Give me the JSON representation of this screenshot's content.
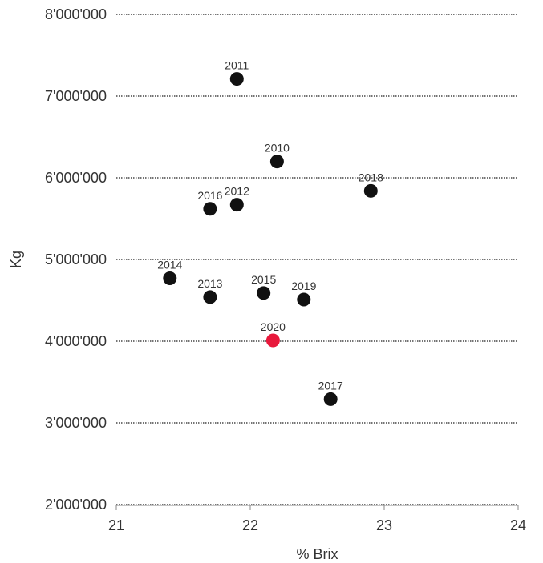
{
  "chart_data": {
    "type": "scatter",
    "xlabel": "% Brix",
    "ylabel": "Kg",
    "xlim": [
      21,
      24
    ],
    "ylim": [
      2000000,
      8000000
    ],
    "x_ticks": [
      21,
      22,
      23,
      24
    ],
    "x_tick_labels": [
      "21",
      "22",
      "23",
      "24"
    ],
    "y_ticks": [
      2000000,
      3000000,
      4000000,
      5000000,
      6000000,
      7000000,
      8000000
    ],
    "y_tick_labels": [
      "2'000'000",
      "3'000'000",
      "4'000'000",
      "5'000'000",
      "6'000'000",
      "7'000'000",
      "8'000'000"
    ],
    "grid": "horizontal dotted",
    "colors": {
      "point": "#111111",
      "highlight": "#e8193c",
      "grid": "#222222",
      "axis": "#888888"
    },
    "points": [
      {
        "label": "2010",
        "x": 22.2,
        "y": 6200000,
        "highlight": false
      },
      {
        "label": "2011",
        "x": 21.9,
        "y": 7210000,
        "highlight": false
      },
      {
        "label": "2012",
        "x": 21.9,
        "y": 5670000,
        "highlight": false
      },
      {
        "label": "2013",
        "x": 21.7,
        "y": 4540000,
        "highlight": false
      },
      {
        "label": "2014",
        "x": 21.4,
        "y": 4770000,
        "highlight": false
      },
      {
        "label": "2015",
        "x": 22.1,
        "y": 4590000,
        "highlight": false
      },
      {
        "label": "2016",
        "x": 21.7,
        "y": 5620000,
        "highlight": false
      },
      {
        "label": "2017",
        "x": 22.6,
        "y": 3290000,
        "highlight": false
      },
      {
        "label": "2018",
        "x": 22.9,
        "y": 5840000,
        "highlight": false
      },
      {
        "label": "2019",
        "x": 22.4,
        "y": 4510000,
        "highlight": false
      },
      {
        "label": "2020",
        "x": 22.17,
        "y": 4010000,
        "highlight": true
      }
    ]
  }
}
